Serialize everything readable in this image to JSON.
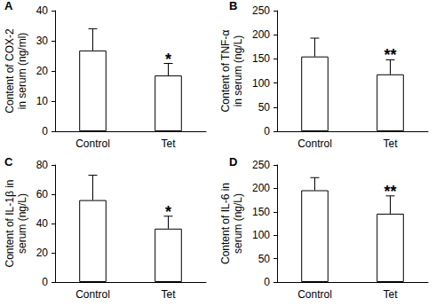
{
  "chart_data": [
    {
      "type": "bar",
      "panel": "A",
      "y_label": "Content of COX-2\nin serum (ng/ml)",
      "categories": [
        "Control",
        "Tet"
      ],
      "values": [
        26.8,
        18.5
      ],
      "errors": [
        7.2,
        4.0
      ],
      "color": "#ffffff",
      "ylim": [
        0,
        40
      ],
      "yticks": [
        0,
        10,
        20,
        30,
        40
      ],
      "grid": false,
      "annotations": [
        {
          "category": "Tet",
          "text": "*"
        }
      ]
    },
    {
      "type": "bar",
      "panel": "B",
      "y_label": "Content of TNF-α\nin serum (ng/L)",
      "categories": [
        "Control",
        "Tet"
      ],
      "values": [
        155,
        118
      ],
      "errors": [
        38,
        30
      ],
      "color": "#ffffff",
      "ylim": [
        0,
        250
      ],
      "yticks": [
        0,
        50,
        100,
        150,
        200,
        250
      ],
      "grid": false,
      "annotations": [
        {
          "category": "Tet",
          "text": "**"
        }
      ]
    },
    {
      "type": "bar",
      "panel": "C",
      "y_label": "Content of IL-1β in\nserum (ng/L)",
      "categories": [
        "Control",
        "Tet"
      ],
      "values": [
        56,
        36.5
      ],
      "errors": [
        17,
        8.5
      ],
      "color": "#ffffff",
      "ylim": [
        0,
        80
      ],
      "yticks": [
        0,
        20,
        40,
        60,
        80
      ],
      "grid": false,
      "annotations": [
        {
          "category": "Tet",
          "text": "*"
        }
      ]
    },
    {
      "type": "bar",
      "panel": "D",
      "y_label": "Content of IL-6 in\nserum (ng/L)",
      "categories": [
        "Control",
        "Tet"
      ],
      "values": [
        196,
        146
      ],
      "errors": [
        27,
        38
      ],
      "color": "#ffffff",
      "ylim": [
        0,
        250
      ],
      "yticks": [
        0,
        50,
        100,
        150,
        200,
        250
      ],
      "grid": false,
      "annotations": [
        {
          "category": "Tet",
          "text": "**"
        }
      ]
    }
  ]
}
